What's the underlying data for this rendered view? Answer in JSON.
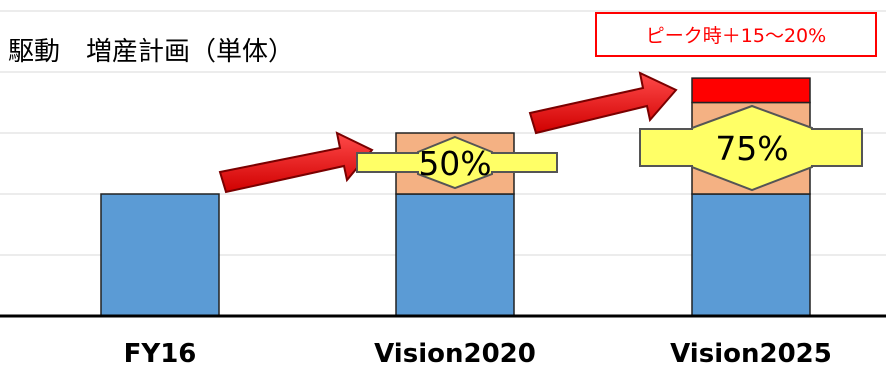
{
  "chart_data": {
    "type": "bar",
    "stacked": true,
    "title": "駆動　増産計画（単体）",
    "categories": [
      "FY16",
      "Vision2020",
      "Vision2025"
    ],
    "series": [
      {
        "values": [
          100,
          100,
          100
        ],
        "color": "#5b9bd5"
      },
      {
        "values": [
          0,
          50,
          75
        ],
        "color": "#f4b183"
      },
      {
        "values": [
          0,
          0,
          20
        ],
        "color": "#ff0000"
      }
    ],
    "ylim": [
      0,
      200
    ],
    "grid": true,
    "annotations": {
      "growth_2020": "50%",
      "growth_2025": "75%",
      "peak_note": "ピーク時＋15〜20%"
    }
  }
}
